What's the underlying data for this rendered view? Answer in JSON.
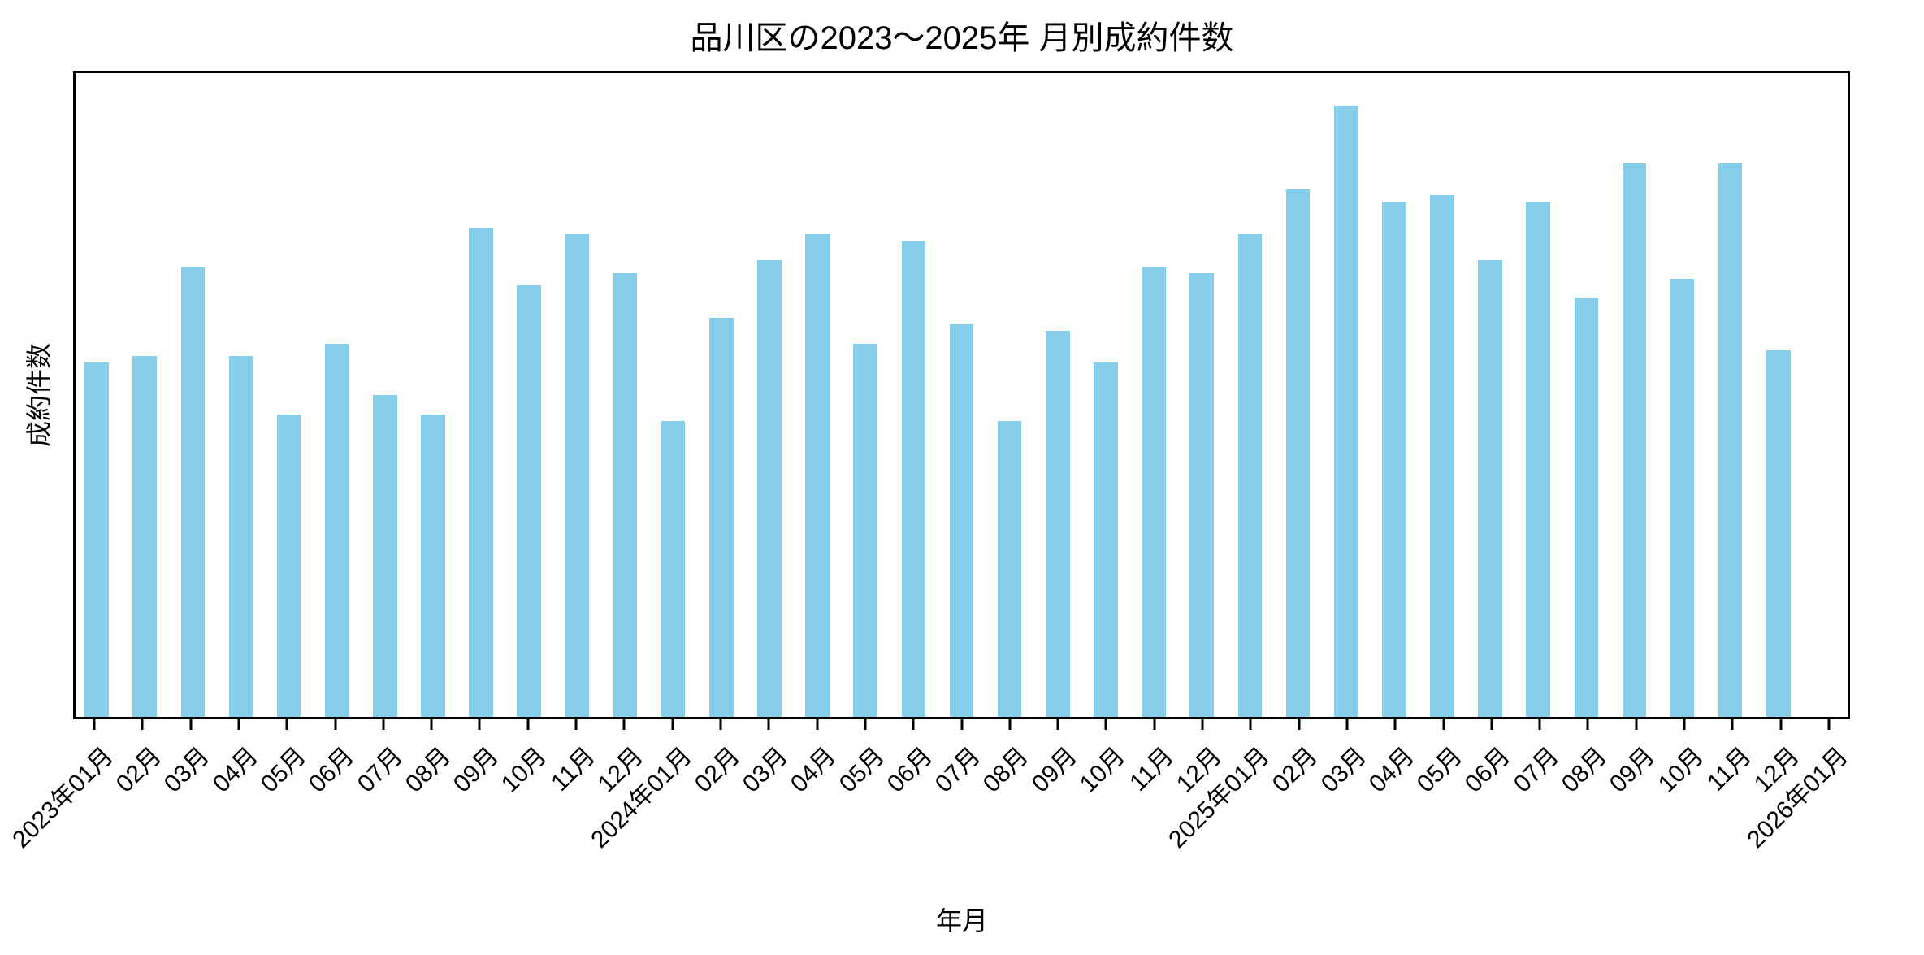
{
  "title": "品川区の2023〜2025年 月別成約件数",
  "chart_data": {
    "type": "bar",
    "title": "品川区の2023〜2025年 月別成約件数",
    "xlabel": "年月",
    "ylabel": "成約件数",
    "bar_color": "#87CEEB",
    "axis_color": "#000000",
    "background_color": "#ffffff",
    "ylim": [
      0,
      100
    ],
    "grid": false,
    "legend": false,
    "y_tick_labels_visible": false,
    "x_tick_rotation_deg": 45,
    "categories": [
      "2023年01月",
      "02月",
      "03月",
      "04月",
      "05月",
      "06月",
      "07月",
      "08月",
      "09月",
      "10月",
      "11月",
      "12月",
      "2024年01月",
      "02月",
      "03月",
      "04月",
      "05月",
      "06月",
      "07月",
      "08月",
      "09月",
      "10月",
      "11月",
      "12月",
      "2025年01月",
      "02月",
      "03月",
      "04月",
      "05月",
      "06月",
      "07月",
      "08月",
      "09月",
      "10月",
      "11月",
      "12月",
      "2026年01月"
    ],
    "values": [
      55,
      56,
      70,
      56,
      47,
      58,
      50,
      47,
      76,
      67,
      75,
      69,
      46,
      62,
      71,
      75,
      58,
      74,
      61,
      46,
      60,
      55,
      70,
      69,
      75,
      82,
      95,
      80,
      81,
      71,
      80,
      65,
      86,
      68,
      86,
      57,
      0
    ]
  }
}
